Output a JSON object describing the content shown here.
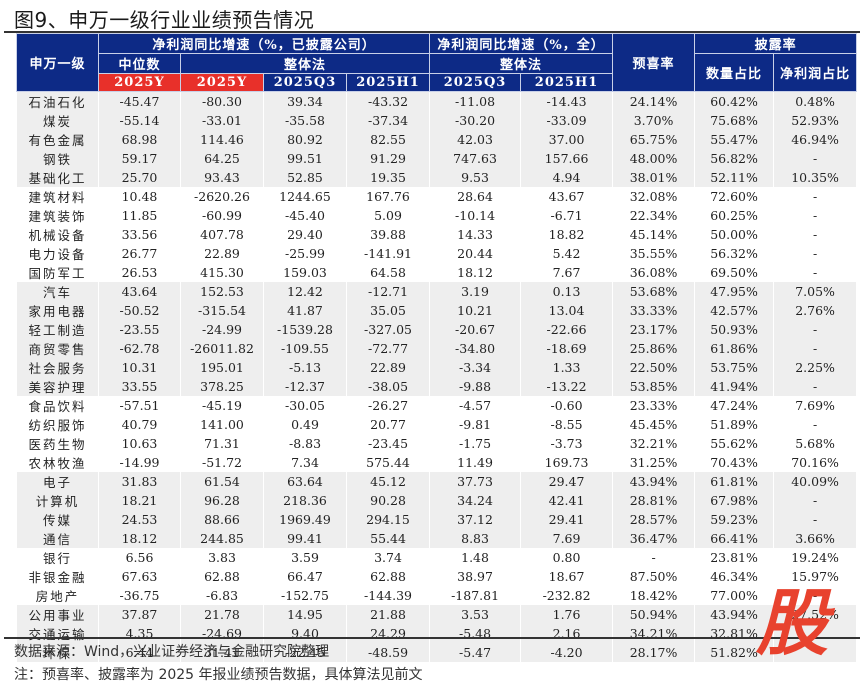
{
  "title": "图9、申万一级行业业绩预告情况",
  "header": {
    "industry_col": "申万一级",
    "group_disclosed": "净利润同比增速（%，已披露公司）",
    "group_all": "净利润同比增速（%，全）",
    "median": "中位数",
    "overall": "整体法",
    "overall_all": "整体法",
    "pre_happy": "预喜率",
    "disclosure": "披露率",
    "count_share": "数量占比",
    "profit_share": "净利润占比",
    "periods": [
      "2025Y",
      "2025Y",
      "2025Q3",
      "2025H1",
      "2025Q3",
      "2025H1"
    ]
  },
  "accent_colors": {
    "header_blue": "#0d2a86",
    "header_red": "#e8302a",
    "watermark_red": "#e8422e"
  },
  "rows": [
    {
      "industry": "石油石化",
      "median_2025y": "-45.47",
      "overall_2025y": "-80.30",
      "overall_2025q3": "39.34",
      "overall_2025h1": "-43.32",
      "all_2025q3": "-11.08",
      "all_2025h1": "-14.43",
      "pre_happy": "24.14%",
      "count_share": "60.42%",
      "profit_share": "0.48%",
      "shade": true
    },
    {
      "industry": "煤炭",
      "median_2025y": "-55.14",
      "overall_2025y": "-33.01",
      "overall_2025q3": "-35.58",
      "overall_2025h1": "-37.34",
      "all_2025q3": "-30.20",
      "all_2025h1": "-33.09",
      "pre_happy": "3.70%",
      "count_share": "75.68%",
      "profit_share": "52.93%",
      "shade": true
    },
    {
      "industry": "有色金属",
      "median_2025y": "68.98",
      "overall_2025y": "114.46",
      "overall_2025q3": "80.92",
      "overall_2025h1": "82.55",
      "all_2025q3": "42.03",
      "all_2025h1": "37.00",
      "pre_happy": "65.75%",
      "count_share": "55.47%",
      "profit_share": "46.94%",
      "shade": true
    },
    {
      "industry": "钢铁",
      "median_2025y": "59.17",
      "overall_2025y": "64.25",
      "overall_2025q3": "99.51",
      "overall_2025h1": "91.29",
      "all_2025q3": "747.63",
      "all_2025h1": "157.66",
      "pre_happy": "48.00%",
      "count_share": "56.82%",
      "profit_share": "-",
      "shade": true
    },
    {
      "industry": "基础化工",
      "median_2025y": "25.70",
      "overall_2025y": "93.43",
      "overall_2025q3": "52.85",
      "overall_2025h1": "19.35",
      "all_2025q3": "9.53",
      "all_2025h1": "4.94",
      "pre_happy": "38.01%",
      "count_share": "52.11%",
      "profit_share": "10.35%",
      "shade": true
    },
    {
      "industry": "建筑材料",
      "median_2025y": "10.48",
      "overall_2025y": "-2620.26",
      "overall_2025q3": "1244.65",
      "overall_2025h1": "167.76",
      "all_2025q3": "28.64",
      "all_2025h1": "43.67",
      "pre_happy": "32.08%",
      "count_share": "72.60%",
      "profit_share": "-",
      "shade": false
    },
    {
      "industry": "建筑装饰",
      "median_2025y": "11.85",
      "overall_2025y": "-60.99",
      "overall_2025q3": "-45.40",
      "overall_2025h1": "5.09",
      "all_2025q3": "-10.14",
      "all_2025h1": "-6.71",
      "pre_happy": "22.34%",
      "count_share": "60.25%",
      "profit_share": "-",
      "shade": false
    },
    {
      "industry": "机械设备",
      "median_2025y": "33.56",
      "overall_2025y": "407.78",
      "overall_2025q3": "29.40",
      "overall_2025h1": "39.88",
      "all_2025q3": "14.33",
      "all_2025h1": "18.82",
      "pre_happy": "45.14%",
      "count_share": "50.00%",
      "profit_share": "-",
      "shade": false
    },
    {
      "industry": "电力设备",
      "median_2025y": "26.77",
      "overall_2025y": "22.89",
      "overall_2025q3": "-25.99",
      "overall_2025h1": "-141.91",
      "all_2025q3": "20.44",
      "all_2025h1": "5.42",
      "pre_happy": "35.55%",
      "count_share": "56.32%",
      "profit_share": "-",
      "shade": false
    },
    {
      "industry": "国防军工",
      "median_2025y": "26.53",
      "overall_2025y": "415.30",
      "overall_2025q3": "159.03",
      "overall_2025h1": "64.58",
      "all_2025q3": "18.12",
      "all_2025h1": "7.67",
      "pre_happy": "36.08%",
      "count_share": "69.50%",
      "profit_share": "-",
      "shade": false
    },
    {
      "industry": "汽车",
      "median_2025y": "43.64",
      "overall_2025y": "152.53",
      "overall_2025q3": "12.42",
      "overall_2025h1": "-12.71",
      "all_2025q3": "3.19",
      "all_2025h1": "0.13",
      "pre_happy": "53.68%",
      "count_share": "47.95%",
      "profit_share": "7.05%",
      "shade": true
    },
    {
      "industry": "家用电器",
      "median_2025y": "-50.52",
      "overall_2025y": "-315.54",
      "overall_2025q3": "41.87",
      "overall_2025h1": "35.05",
      "all_2025q3": "10.21",
      "all_2025h1": "13.04",
      "pre_happy": "33.33%",
      "count_share": "42.57%",
      "profit_share": "2.76%",
      "shade": true
    },
    {
      "industry": "轻工制造",
      "median_2025y": "-23.55",
      "overall_2025y": "-24.99",
      "overall_2025q3": "-1539.28",
      "overall_2025h1": "-327.05",
      "all_2025q3": "-20.67",
      "all_2025h1": "-22.66",
      "pre_happy": "23.17%",
      "count_share": "50.93%",
      "profit_share": "-",
      "shade": true
    },
    {
      "industry": "商贸零售",
      "median_2025y": "-62.78",
      "overall_2025y": "-26011.82",
      "overall_2025q3": "-109.55",
      "overall_2025h1": "-72.77",
      "all_2025q3": "-34.80",
      "all_2025h1": "-18.69",
      "pre_happy": "25.86%",
      "count_share": "61.86%",
      "profit_share": "-",
      "shade": true
    },
    {
      "industry": "社会服务",
      "median_2025y": "10.31",
      "overall_2025y": "195.01",
      "overall_2025q3": "-5.13",
      "overall_2025h1": "22.89",
      "all_2025q3": "-3.34",
      "all_2025h1": "1.33",
      "pre_happy": "22.50%",
      "count_share": "53.75%",
      "profit_share": "2.25%",
      "shade": true
    },
    {
      "industry": "美容护理",
      "median_2025y": "33.55",
      "overall_2025y": "378.25",
      "overall_2025q3": "-12.37",
      "overall_2025h1": "-38.05",
      "all_2025q3": "-9.88",
      "all_2025h1": "-13.22",
      "pre_happy": "53.85%",
      "count_share": "41.94%",
      "profit_share": "-",
      "shade": true
    },
    {
      "industry": "食品饮料",
      "median_2025y": "-57.51",
      "overall_2025y": "-45.19",
      "overall_2025q3": "-30.05",
      "overall_2025h1": "-26.27",
      "all_2025q3": "-4.57",
      "all_2025h1": "-0.60",
      "pre_happy": "23.33%",
      "count_share": "47.24%",
      "profit_share": "7.69%",
      "shade": false
    },
    {
      "industry": "纺织服饰",
      "median_2025y": "40.79",
      "overall_2025y": "141.00",
      "overall_2025q3": "0.49",
      "overall_2025h1": "20.77",
      "all_2025q3": "-9.81",
      "all_2025h1": "-8.55",
      "pre_happy": "45.45%",
      "count_share": "51.89%",
      "profit_share": "-",
      "shade": false
    },
    {
      "industry": "医药生物",
      "median_2025y": "10.63",
      "overall_2025y": "71.31",
      "overall_2025q3": "-8.83",
      "overall_2025h1": "-23.45",
      "all_2025q3": "-1.75",
      "all_2025h1": "-3.73",
      "pre_happy": "32.21%",
      "count_share": "55.62%",
      "profit_share": "5.68%",
      "shade": false
    },
    {
      "industry": "农林牧渔",
      "median_2025y": "-14.99",
      "overall_2025y": "-51.72",
      "overall_2025q3": "7.34",
      "overall_2025h1": "575.44",
      "all_2025q3": "11.49",
      "all_2025h1": "169.73",
      "pre_happy": "31.25%",
      "count_share": "70.43%",
      "profit_share": "70.16%",
      "shade": false
    },
    {
      "industry": "电子",
      "median_2025y": "31.83",
      "overall_2025y": "61.54",
      "overall_2025q3": "63.64",
      "overall_2025h1": "45.12",
      "all_2025q3": "37.73",
      "all_2025h1": "29.47",
      "pre_happy": "43.94%",
      "count_share": "61.81%",
      "profit_share": "40.09%",
      "shade": true
    },
    {
      "industry": "计算机",
      "median_2025y": "18.21",
      "overall_2025y": "96.28",
      "overall_2025q3": "218.36",
      "overall_2025h1": "90.28",
      "all_2025q3": "34.24",
      "all_2025h1": "42.41",
      "pre_happy": "28.81%",
      "count_share": "67.98%",
      "profit_share": "-",
      "shade": true
    },
    {
      "industry": "传媒",
      "median_2025y": "24.53",
      "overall_2025y": "88.66",
      "overall_2025q3": "1969.49",
      "overall_2025h1": "294.15",
      "all_2025q3": "37.12",
      "all_2025h1": "29.41",
      "pre_happy": "28.57%",
      "count_share": "59.23%",
      "profit_share": "-",
      "shade": true
    },
    {
      "industry": "通信",
      "median_2025y": "18.12",
      "overall_2025y": "244.85",
      "overall_2025q3": "99.41",
      "overall_2025h1": "55.44",
      "all_2025q3": "8.83",
      "all_2025h1": "7.69",
      "pre_happy": "36.47%",
      "count_share": "66.41%",
      "profit_share": "3.66%",
      "shade": true
    },
    {
      "industry": "银行",
      "median_2025y": "6.56",
      "overall_2025y": "3.83",
      "overall_2025q3": "3.59",
      "overall_2025h1": "3.74",
      "all_2025q3": "1.48",
      "all_2025h1": "0.80",
      "pre_happy": "-",
      "count_share": "23.81%",
      "profit_share": "19.24%",
      "shade": false
    },
    {
      "industry": "非银金融",
      "median_2025y": "67.63",
      "overall_2025y": "62.88",
      "overall_2025q3": "66.47",
      "overall_2025h1": "62.88",
      "all_2025q3": "38.97",
      "all_2025h1": "18.67",
      "pre_happy": "87.50%",
      "count_share": "46.34%",
      "profit_share": "15.97%",
      "shade": false
    },
    {
      "industry": "房地产",
      "median_2025y": "-36.75",
      "overall_2025y": "-6.83",
      "overall_2025q3": "-152.75",
      "overall_2025h1": "-144.39",
      "all_2025q3": "-187.81",
      "all_2025h1": "-232.82",
      "pre_happy": "18.42%",
      "count_share": "77.00%",
      "profit_share": "-",
      "shade": false
    },
    {
      "industry": "公用事业",
      "median_2025y": "37.87",
      "overall_2025y": "21.78",
      "overall_2025q3": "14.95",
      "overall_2025h1": "21.88",
      "all_2025q3": "3.53",
      "all_2025h1": "1.76",
      "pre_happy": "50.94%",
      "count_share": "43.94%",
      "profit_share": "27.52%",
      "shade": true
    },
    {
      "industry": "交通运输",
      "median_2025y": "4.35",
      "overall_2025y": "-24.69",
      "overall_2025q3": "9.40",
      "overall_2025h1": "24.29",
      "all_2025q3": "-5.48",
      "all_2025h1": "2.16",
      "pre_happy": "34.21%",
      "count_share": "32.81%",
      "profit_share": "",
      "shade": true
    },
    {
      "industry": "环保",
      "median_2025y": "6.44",
      "overall_2025y": "31.41",
      "overall_2025q3": "-22.45",
      "overall_2025h1": "-48.59",
      "all_2025q3": "-5.47",
      "all_2025h1": "-4.20",
      "pre_happy": "28.17%",
      "count_share": "51.82%",
      "profit_share": "",
      "shade": true
    }
  ],
  "footer": {
    "source": "数据来源：Wind，兴业证券经济与金融研究院整理",
    "note": "注：预喜率、披露率为 2025 年报业绩预告数据，具体算法见前文"
  },
  "watermark": {
    "glyph": "股"
  }
}
